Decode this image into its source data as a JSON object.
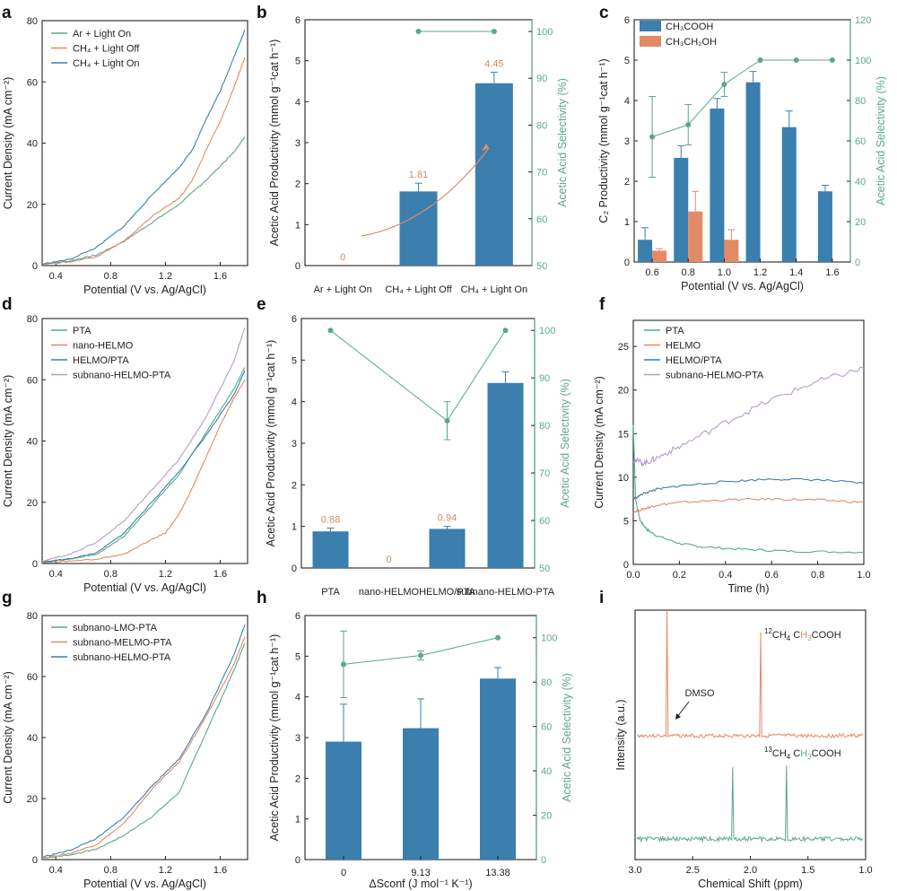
{
  "colors": {
    "blue": "#3a7fae",
    "orange": "#e38a66",
    "green": "#5aa888",
    "purple": "#b79ac9",
    "teal": "#5aa888",
    "grey": "#7fa9a0"
  },
  "chart_data": [
    {
      "id": "a",
      "panel_label": "a",
      "type": "line",
      "xlabel": "Potential (V vs. Ag/AgCl)",
      "ylabel": "Current Density (mA cm⁻²)",
      "xlim": [
        0.3,
        1.8
      ],
      "ylim": [
        0,
        80
      ],
      "xticks": [
        "0.4",
        "0.8",
        "1.2",
        "1.6"
      ],
      "yticks": [
        "0",
        "20",
        "40",
        "60",
        "80"
      ],
      "series": [
        {
          "name": "Ar + Light On",
          "color": "green",
          "x": [
            0.3,
            0.5,
            0.7,
            0.9,
            1.1,
            1.3,
            1.5,
            1.7,
            1.78
          ],
          "y": [
            0.5,
            1.5,
            3.5,
            8,
            14,
            20,
            28,
            37,
            42
          ]
        },
        {
          "name": "CH₄ + Light Off",
          "color": "orange",
          "x": [
            0.3,
            0.5,
            0.7,
            0.9,
            1.1,
            1.3,
            1.4,
            1.5,
            1.6,
            1.7,
            1.78
          ],
          "y": [
            0.5,
            1.2,
            3,
            8,
            16,
            22,
            28,
            38,
            47,
            58,
            68
          ]
        },
        {
          "name": "CH₄ + Light On",
          "color": "blue",
          "x": [
            0.3,
            0.5,
            0.7,
            0.9,
            1.1,
            1.3,
            1.4,
            1.5,
            1.6,
            1.7,
            1.78
          ],
          "y": [
            0.5,
            2,
            6,
            13,
            23,
            32,
            38,
            48,
            57,
            68,
            77
          ]
        }
      ]
    },
    {
      "id": "b",
      "panel_label": "b",
      "type": "bar",
      "categories": [
        "Ar + Light On",
        "CH₄ + Light Off",
        "CH₄ + Light On"
      ],
      "values": [
        0,
        1.81,
        4.45
      ],
      "errors": [
        0,
        0.2,
        0.27
      ],
      "value_labels": [
        "0",
        "1.81",
        "4.45"
      ],
      "ylabel": "Acetic Acid Productivity (mmol g⁻¹cat h⁻¹)",
      "ylim": [
        0,
        6
      ],
      "yticks": [
        "0",
        "1",
        "2",
        "3",
        "4",
        "5",
        "6"
      ],
      "y2label": "Acetic Acid Selectivity (%)",
      "y2lim": [
        50,
        102.5
      ],
      "y2ticks": [
        "50",
        "60",
        "70",
        "80",
        "90",
        "100"
      ],
      "selectivity": [
        null,
        100,
        100
      ]
    },
    {
      "id": "c",
      "panel_label": "c",
      "type": "bar",
      "categories": [
        "0.6",
        "0.8",
        "1.0",
        "1.2",
        "1.4",
        "1.6"
      ],
      "xlabel": "Potential (V vs. Ag/AgCl)",
      "ylabel": "C₂ Productivity (mmol g⁻¹cat h⁻¹)",
      "ylim": [
        0,
        6
      ],
      "yticks": [
        "0",
        "1",
        "2",
        "3",
        "4",
        "5",
        "6"
      ],
      "y2label": "Acetic Acid Selectivity (%)",
      "y2lim": [
        0,
        120
      ],
      "y2ticks": [
        "0",
        "20",
        "40",
        "60",
        "80",
        "100",
        "120"
      ],
      "series": [
        {
          "name": "CH₃COOH",
          "color": "blue",
          "values": [
            0.55,
            2.58,
            3.8,
            4.45,
            3.34,
            1.75
          ],
          "errors": [
            0.3,
            0.3,
            0.25,
            0.27,
            0.4,
            0.15
          ]
        },
        {
          "name": "CH₃CH₂OH",
          "color": "orange",
          "values": [
            0.28,
            1.25,
            0.55,
            0,
            0,
            0
          ],
          "errors": [
            0.05,
            0.5,
            0.25,
            0,
            0,
            0
          ]
        }
      ],
      "selectivity": [
        62,
        68,
        88,
        100,
        100,
        100
      ],
      "selectivity_err": [
        20,
        10,
        6,
        0,
        0,
        0
      ]
    },
    {
      "id": "d",
      "panel_label": "d",
      "type": "line",
      "xlabel": "Potential (V vs. Ag/AgCl)",
      "ylabel": "Current Density (mA cm⁻²)",
      "xlim": [
        0.3,
        1.8
      ],
      "ylim": [
        0,
        80
      ],
      "xticks": [
        "0.4",
        "0.8",
        "1.2",
        "1.6"
      ],
      "yticks": [
        "0",
        "20",
        "40",
        "60",
        "80"
      ],
      "series": [
        {
          "name": "PTA",
          "color": "teal",
          "x": [
            0.3,
            0.5,
            0.7,
            0.9,
            1.1,
            1.3,
            1.5,
            1.7,
            1.78
          ],
          "y": [
            0.5,
            1.5,
            3,
            9,
            19,
            29,
            43,
            57,
            64
          ]
        },
        {
          "name": "nano-HELMO",
          "color": "orange",
          "x": [
            0.3,
            0.5,
            0.7,
            0.9,
            1.0,
            1.2,
            1.3,
            1.4,
            1.5,
            1.6,
            1.7,
            1.78
          ],
          "y": [
            0.3,
            0.8,
            1.5,
            3,
            5.5,
            10,
            16,
            25,
            35,
            45,
            54,
            60
          ]
        },
        {
          "name": "HELMO/PTA",
          "color": "blue",
          "x": [
            0.3,
            0.5,
            0.7,
            0.9,
            1.1,
            1.3,
            1.5,
            1.7,
            1.78
          ],
          "y": [
            0.5,
            1.5,
            3.5,
            10,
            20,
            30,
            42,
            55,
            63
          ]
        },
        {
          "name": "subnano-HELMO-PTA",
          "color": "purple",
          "x": [
            0.3,
            0.5,
            0.7,
            0.9,
            1.1,
            1.3,
            1.5,
            1.7,
            1.78
          ],
          "y": [
            0.8,
            3,
            7,
            14,
            24,
            34,
            48,
            66,
            77
          ]
        }
      ]
    },
    {
      "id": "e",
      "panel_label": "e",
      "type": "bar",
      "categories": [
        "PTA",
        "nano-HELMO",
        "HELMO/PTA",
        "subnano-HELMO-PTA"
      ],
      "values": [
        0.88,
        0,
        0.94,
        4.45
      ],
      "errors": [
        0.08,
        0,
        0.06,
        0.27
      ],
      "value_labels": [
        "0.88",
        "0",
        "0.94",
        ""
      ],
      "ylabel": "Acetic Acid Productivity (mmol g⁻¹cat h⁻¹)",
      "ylim": [
        0,
        6
      ],
      "yticks": [
        "0",
        "1",
        "2",
        "3",
        "4",
        "5",
        "6"
      ],
      "y2label": "Acetic Acid Selectivity (%)",
      "y2lim": [
        50,
        102.5
      ],
      "y2ticks": [
        "50",
        "60",
        "70",
        "80",
        "90",
        "100"
      ],
      "selectivity": [
        100,
        null,
        81,
        100
      ],
      "selectivity_err": [
        0,
        0,
        4,
        0
      ]
    },
    {
      "id": "f",
      "panel_label": "f",
      "type": "line",
      "xlabel": "Time (h)",
      "ylabel": "Current Density (mA cm⁻²)",
      "xlim": [
        0,
        1
      ],
      "ylim": [
        0,
        28
      ],
      "xticks": [
        "0.0",
        "0.2",
        "0.4",
        "0.6",
        "0.8",
        "1.0"
      ],
      "yticks": [
        "0",
        "5",
        "10",
        "15",
        "20",
        "25"
      ],
      "series": [
        {
          "name": "PTA",
          "color": "teal",
          "x": [
            0,
            0.01,
            0.03,
            0.06,
            0.1,
            0.2,
            0.3,
            0.5,
            0.7,
            1.0
          ],
          "y": [
            16,
            7.5,
            5,
            4,
            3.3,
            2.4,
            2,
            1.7,
            1.5,
            1.4
          ]
        },
        {
          "name": "HELMO",
          "color": "orange",
          "x": [
            0,
            0.05,
            0.1,
            0.2,
            0.4,
            0.6,
            0.8,
            1.0
          ],
          "y": [
            6,
            6.4,
            6.8,
            7.1,
            7.4,
            7.5,
            7.4,
            7.1
          ]
        },
        {
          "name": "HELMO/PTA",
          "color": "blue",
          "x": [
            0,
            0.05,
            0.1,
            0.2,
            0.4,
            0.6,
            0.8,
            1.0
          ],
          "y": [
            7.5,
            8.2,
            8.6,
            9,
            9.5,
            9.8,
            9.7,
            9.3
          ]
        },
        {
          "name": "subnano-HELMO-PTA",
          "color": "purple",
          "x": [
            0,
            0.05,
            0.1,
            0.2,
            0.4,
            0.6,
            0.8,
            1.0
          ],
          "y": [
            12,
            11.6,
            12.2,
            13.5,
            16.3,
            18.9,
            21,
            22.5
          ]
        }
      ]
    },
    {
      "id": "g",
      "panel_label": "g",
      "type": "line",
      "xlabel": "Potential (V vs. Ag/AgCl)",
      "ylabel": "Current Density (mA cm⁻²)",
      "xlim": [
        0.3,
        1.8
      ],
      "ylim": [
        0,
        80
      ],
      "xticks": [
        "0.4",
        "0.8",
        "1.2",
        "1.6"
      ],
      "yticks": [
        "0",
        "20",
        "40",
        "60",
        "80"
      ],
      "series": [
        {
          "name": "subnano-LMO-PTA",
          "color": "teal",
          "x": [
            0.3,
            0.5,
            0.7,
            0.9,
            1.1,
            1.3,
            1.5,
            1.7,
            1.78
          ],
          "y": [
            0.5,
            1.5,
            3.5,
            8,
            14,
            22,
            42,
            62,
            71
          ]
        },
        {
          "name": "subnano-MELMO-PTA",
          "color": "orange",
          "x": [
            0.3,
            0.5,
            0.7,
            0.9,
            1.1,
            1.3,
            1.5,
            1.7,
            1.78
          ],
          "y": [
            0.5,
            2,
            5,
            12,
            23,
            32,
            47,
            64,
            73
          ]
        },
        {
          "name": "subnano-HELMO-PTA",
          "color": "blue",
          "x": [
            0.3,
            0.5,
            0.7,
            0.9,
            1.1,
            1.3,
            1.5,
            1.7,
            1.78
          ],
          "y": [
            0.8,
            3,
            7,
            14,
            24,
            33,
            48,
            67,
            77
          ]
        }
      ]
    },
    {
      "id": "h",
      "panel_label": "h",
      "type": "bar",
      "categories": [
        "0",
        "9.13",
        "13.38"
      ],
      "xlabel": "ΔSconf (J mol⁻¹ K⁻¹)",
      "values": [
        2.9,
        3.23,
        4.45
      ],
      "errors": [
        0.92,
        0.72,
        0.27
      ],
      "ylabel": "Acetic Acid Productivity (mmol g⁻¹cat h⁻¹)",
      "ylim": [
        0,
        6
      ],
      "yticks": [
        "0",
        "1",
        "2",
        "3",
        "4",
        "5",
        "6"
      ],
      "y2label": "Acetic Acid Selectivity (%)",
      "y2lim": [
        0,
        110
      ],
      "y2ticks": [
        "0",
        "20",
        "40",
        "60",
        "80",
        "100"
      ],
      "selectivity": [
        88,
        92,
        100
      ],
      "selectivity_err": [
        15,
        2,
        0
      ]
    },
    {
      "id": "i",
      "panel_label": "i",
      "type": "line",
      "xlabel": "Chemical Shift (ppm)",
      "ylabel": "Intensity (a.u.)",
      "xlim": [
        3.0,
        1.0
      ],
      "xticks": [
        "3.0",
        "2.5",
        "2.0",
        "1.5",
        "1.0"
      ],
      "annotations": {
        "dmso": "DMSO",
        "top_label_pre": "12",
        "top_label_mid": "CH",
        "top_label_sub": "4",
        "top_label_post": " C",
        "top_label_h": "H",
        "top_label_3": "3",
        "top_label_end": "COOH",
        "bot_label_pre": "13"
      },
      "series": [
        {
          "name": "¹²CH₄ CH₃COOH",
          "color": "orange",
          "peaks_ppm": [
            2.72,
            1.91
          ]
        },
        {
          "name": "¹³CH₄ CH₃COOH",
          "color": "teal",
          "peaks_ppm": [
            2.15,
            1.69
          ]
        }
      ]
    }
  ]
}
